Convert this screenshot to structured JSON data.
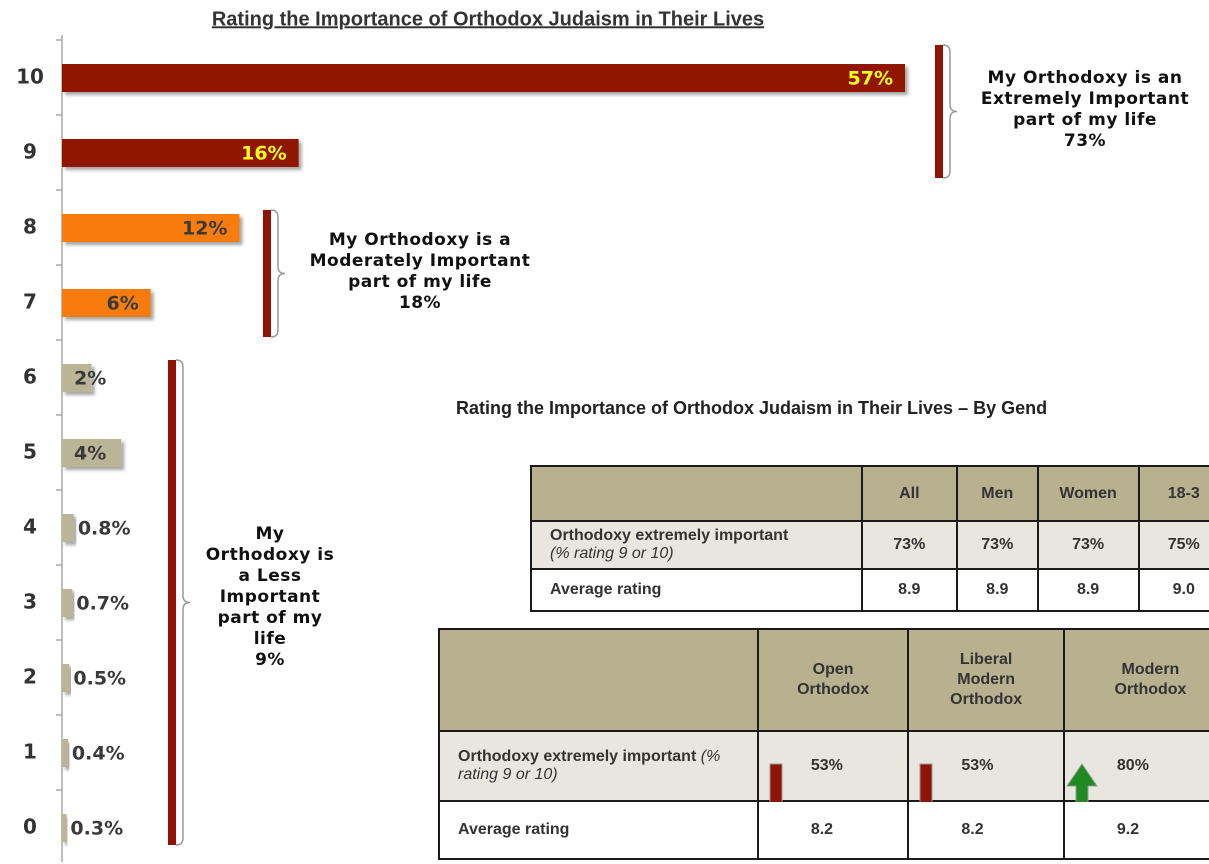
{
  "chart_data": {
    "type": "bar",
    "orientation": "horizontal",
    "title": "Rating the Importance of Orthodox Judaism in Their Lives",
    "categories": [
      "10",
      "9",
      "8",
      "7",
      "6",
      "5",
      "4",
      "3",
      "2",
      "1",
      "0"
    ],
    "values": [
      57,
      16,
      12,
      6,
      2,
      4,
      0.8,
      0.7,
      0.5,
      0.4,
      0.3
    ],
    "value_labels": [
      "57%",
      "16%",
      "12%",
      "6%",
      "2%",
      "4%",
      "0.8%",
      "0.7%",
      "0.5%",
      "0.4%",
      "0.3%"
    ],
    "colors": [
      "#901405",
      "#901405",
      "#f77b0c",
      "#f77b0c",
      "#bab596",
      "#bab596",
      "#bab596",
      "#bab596",
      "#bab596",
      "#bab596",
      "#bab596"
    ],
    "label_colors": [
      "#ffff1a",
      "#ffff1a",
      "#3a3a3a",
      "#3a3a3a",
      "#3a3a3a",
      "#3a3a3a",
      "#3a3a3a",
      "#3a3a3a",
      "#3a3a3a",
      "#3a3a3a",
      "#3a3a3a"
    ],
    "annotations": [
      {
        "text": "My Orthodoxy is an Extremely Important part of my life",
        "total": "73%"
      },
      {
        "text": "My Orthodoxy is a Moderately Important part of my life",
        "total": "18%"
      },
      {
        "text": "My Orthodoxy is a Less Important part of my life",
        "total": "9%"
      }
    ]
  },
  "tables": [
    {
      "title": "Rating the Importance of Orthodox Judaism in Their Lives – By Gend",
      "columns": [
        "All",
        "Men",
        "Women",
        "18-3"
      ],
      "rows": [
        {
          "label": "Orthodoxy extremely important",
          "note": "(% rating 9 or 10)",
          "cells": [
            "73%",
            "73%",
            "73%",
            "75%"
          ]
        },
        {
          "label": "Average rating",
          "cells": [
            "8.9",
            "8.9",
            "8.9",
            "9.0"
          ]
        }
      ]
    },
    {
      "columns": [
        "Open Orthodox",
        "Liberal Modern Orthodox",
        "Modern Orthodox"
      ],
      "rows": [
        {
          "label": "Orthodoxy extremely important",
          "note": "(% rating 9 or 10)",
          "cells": [
            "53%",
            "53%",
            "80%"
          ]
        },
        {
          "label": "Average rating",
          "cells": [
            "8.2",
            "8.2",
            "9.2"
          ]
        }
      ],
      "trends": [
        "down",
        "down",
        "up"
      ]
    }
  ]
}
